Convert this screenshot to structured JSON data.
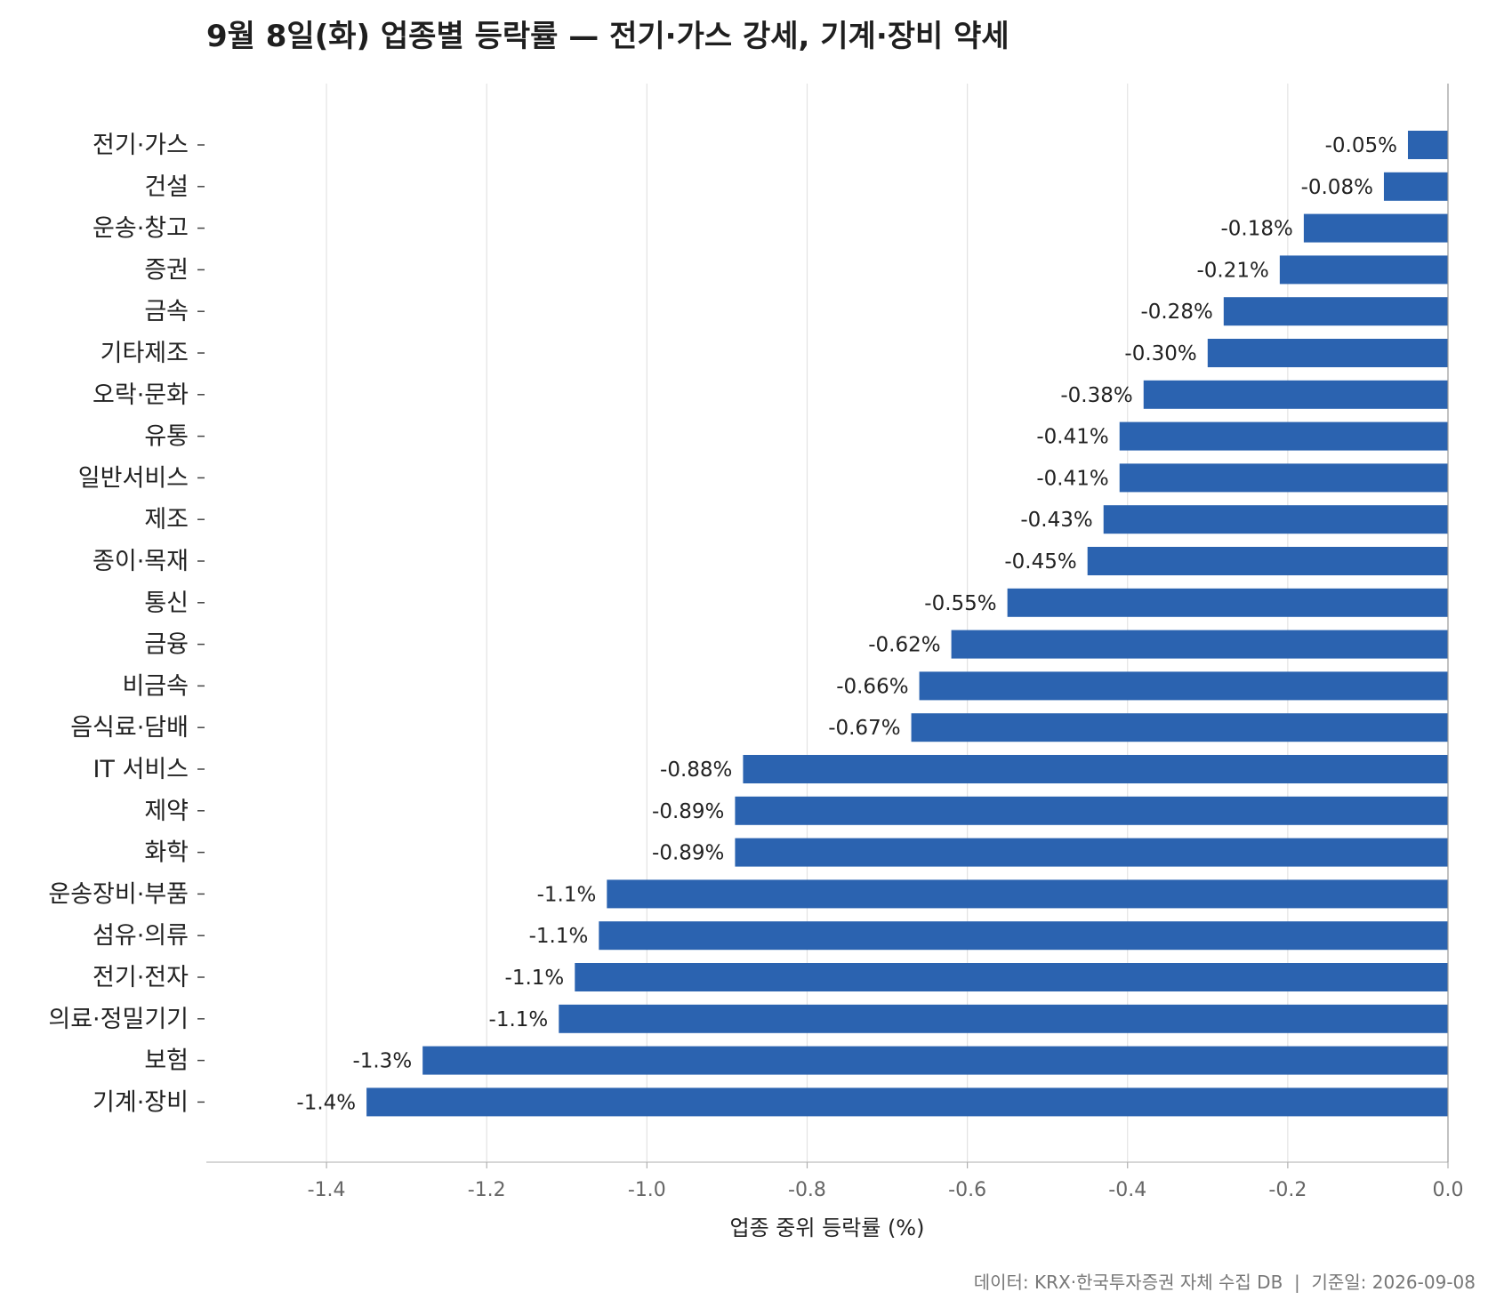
{
  "chart_data": {
    "type": "bar",
    "orientation": "horizontal",
    "title": "9월 8일(화) 업종별 등락률 — 전기·가스 강세, 기계·장비 약세",
    "xlabel": "업종 중위 등락률 (%)",
    "ylabel": "",
    "xlim": [
      -1.55,
      0.0
    ],
    "xticks": [
      -1.4,
      -1.2,
      -1.0,
      -0.8,
      -0.6,
      -0.4,
      -0.2,
      0.0
    ],
    "xtick_labels": [
      "-1.4",
      "-1.2",
      "-1.0",
      "-0.8",
      "-0.6",
      "-0.4",
      "-0.2",
      "0.0"
    ],
    "grid": "vertical",
    "bar_color": "#2b63b0",
    "categories": [
      "전기·가스",
      "건설",
      "운송·창고",
      "증권",
      "금속",
      "기타제조",
      "오락·문화",
      "유통",
      "일반서비스",
      "제조",
      "종이·목재",
      "통신",
      "금융",
      "비금속",
      "음식료·담배",
      "IT 서비스",
      "제약",
      "화학",
      "운송장비·부품",
      "섬유·의류",
      "전기·전자",
      "의료·정밀기기",
      "보험",
      "기계·장비"
    ],
    "values": [
      -0.05,
      -0.08,
      -0.18,
      -0.21,
      -0.28,
      -0.3,
      -0.38,
      -0.41,
      -0.41,
      -0.43,
      -0.45,
      -0.55,
      -0.62,
      -0.66,
      -0.67,
      -0.88,
      -0.89,
      -0.89,
      -1.05,
      -1.06,
      -1.09,
      -1.11,
      -1.28,
      -1.35
    ],
    "value_labels": [
      "-0.05%",
      "-0.08%",
      "-0.18%",
      "-0.21%",
      "-0.28%",
      "-0.30%",
      "-0.38%",
      "-0.41%",
      "-0.41%",
      "-0.43%",
      "-0.45%",
      "-0.55%",
      "-0.62%",
      "-0.66%",
      "-0.67%",
      "-0.88%",
      "-0.89%",
      "-0.89%",
      "-1.1%",
      "-1.1%",
      "-1.1%",
      "-1.1%",
      "-1.3%",
      "-1.4%"
    ]
  },
  "source": "데이터: KRX·한국투자증권 자체 수집 DB  |  기준일: 2026-09-08"
}
